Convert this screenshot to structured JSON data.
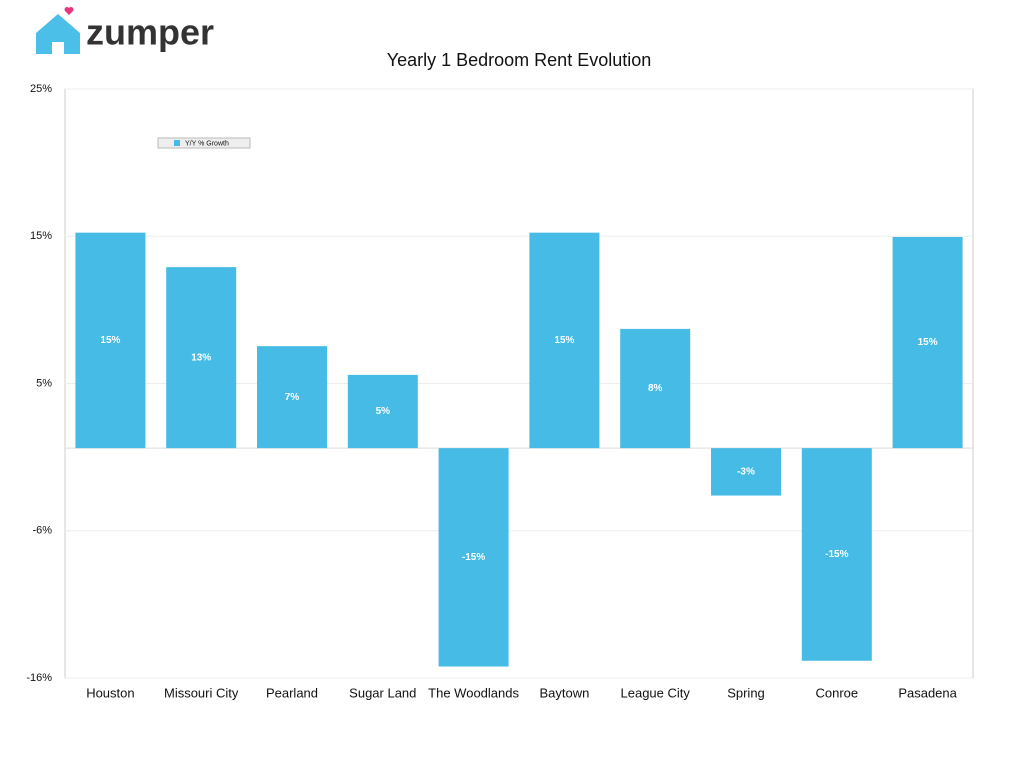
{
  "brand": "zumper",
  "chart_data": {
    "type": "bar",
    "title": "Yearly 1 Bedroom Rent Evolution",
    "categories": [
      "Houston",
      "Missouri City",
      "Pearland",
      "Sugar Land",
      "The Woodlands",
      "Baytown",
      "League City",
      "Spring",
      "Conroe",
      "Pasadena"
    ],
    "series": [
      {
        "name": "Y/Y % Growth",
        "color": "#45bbe5",
        "values": [
          15,
          12.6,
          7.1,
          5.1,
          -15.2,
          15,
          8.3,
          -3.3,
          -14.8,
          14.7
        ],
        "value_labels": [
          "15%",
          "13%",
          "7%",
          "5%",
          "-15%",
          "15%",
          "8%",
          "-3%",
          "-15%",
          "15%"
        ]
      }
    ],
    "ylim": [
      -16,
      25
    ],
    "yticks": [
      {
        "value": 25,
        "label": "25%"
      },
      {
        "value": 14.75,
        "label": "15%"
      },
      {
        "value": 4.5,
        "label": "5%"
      },
      {
        "value": -5.75,
        "label": "-6%"
      },
      {
        "value": -16,
        "label": "-16%"
      }
    ],
    "grid": true
  }
}
